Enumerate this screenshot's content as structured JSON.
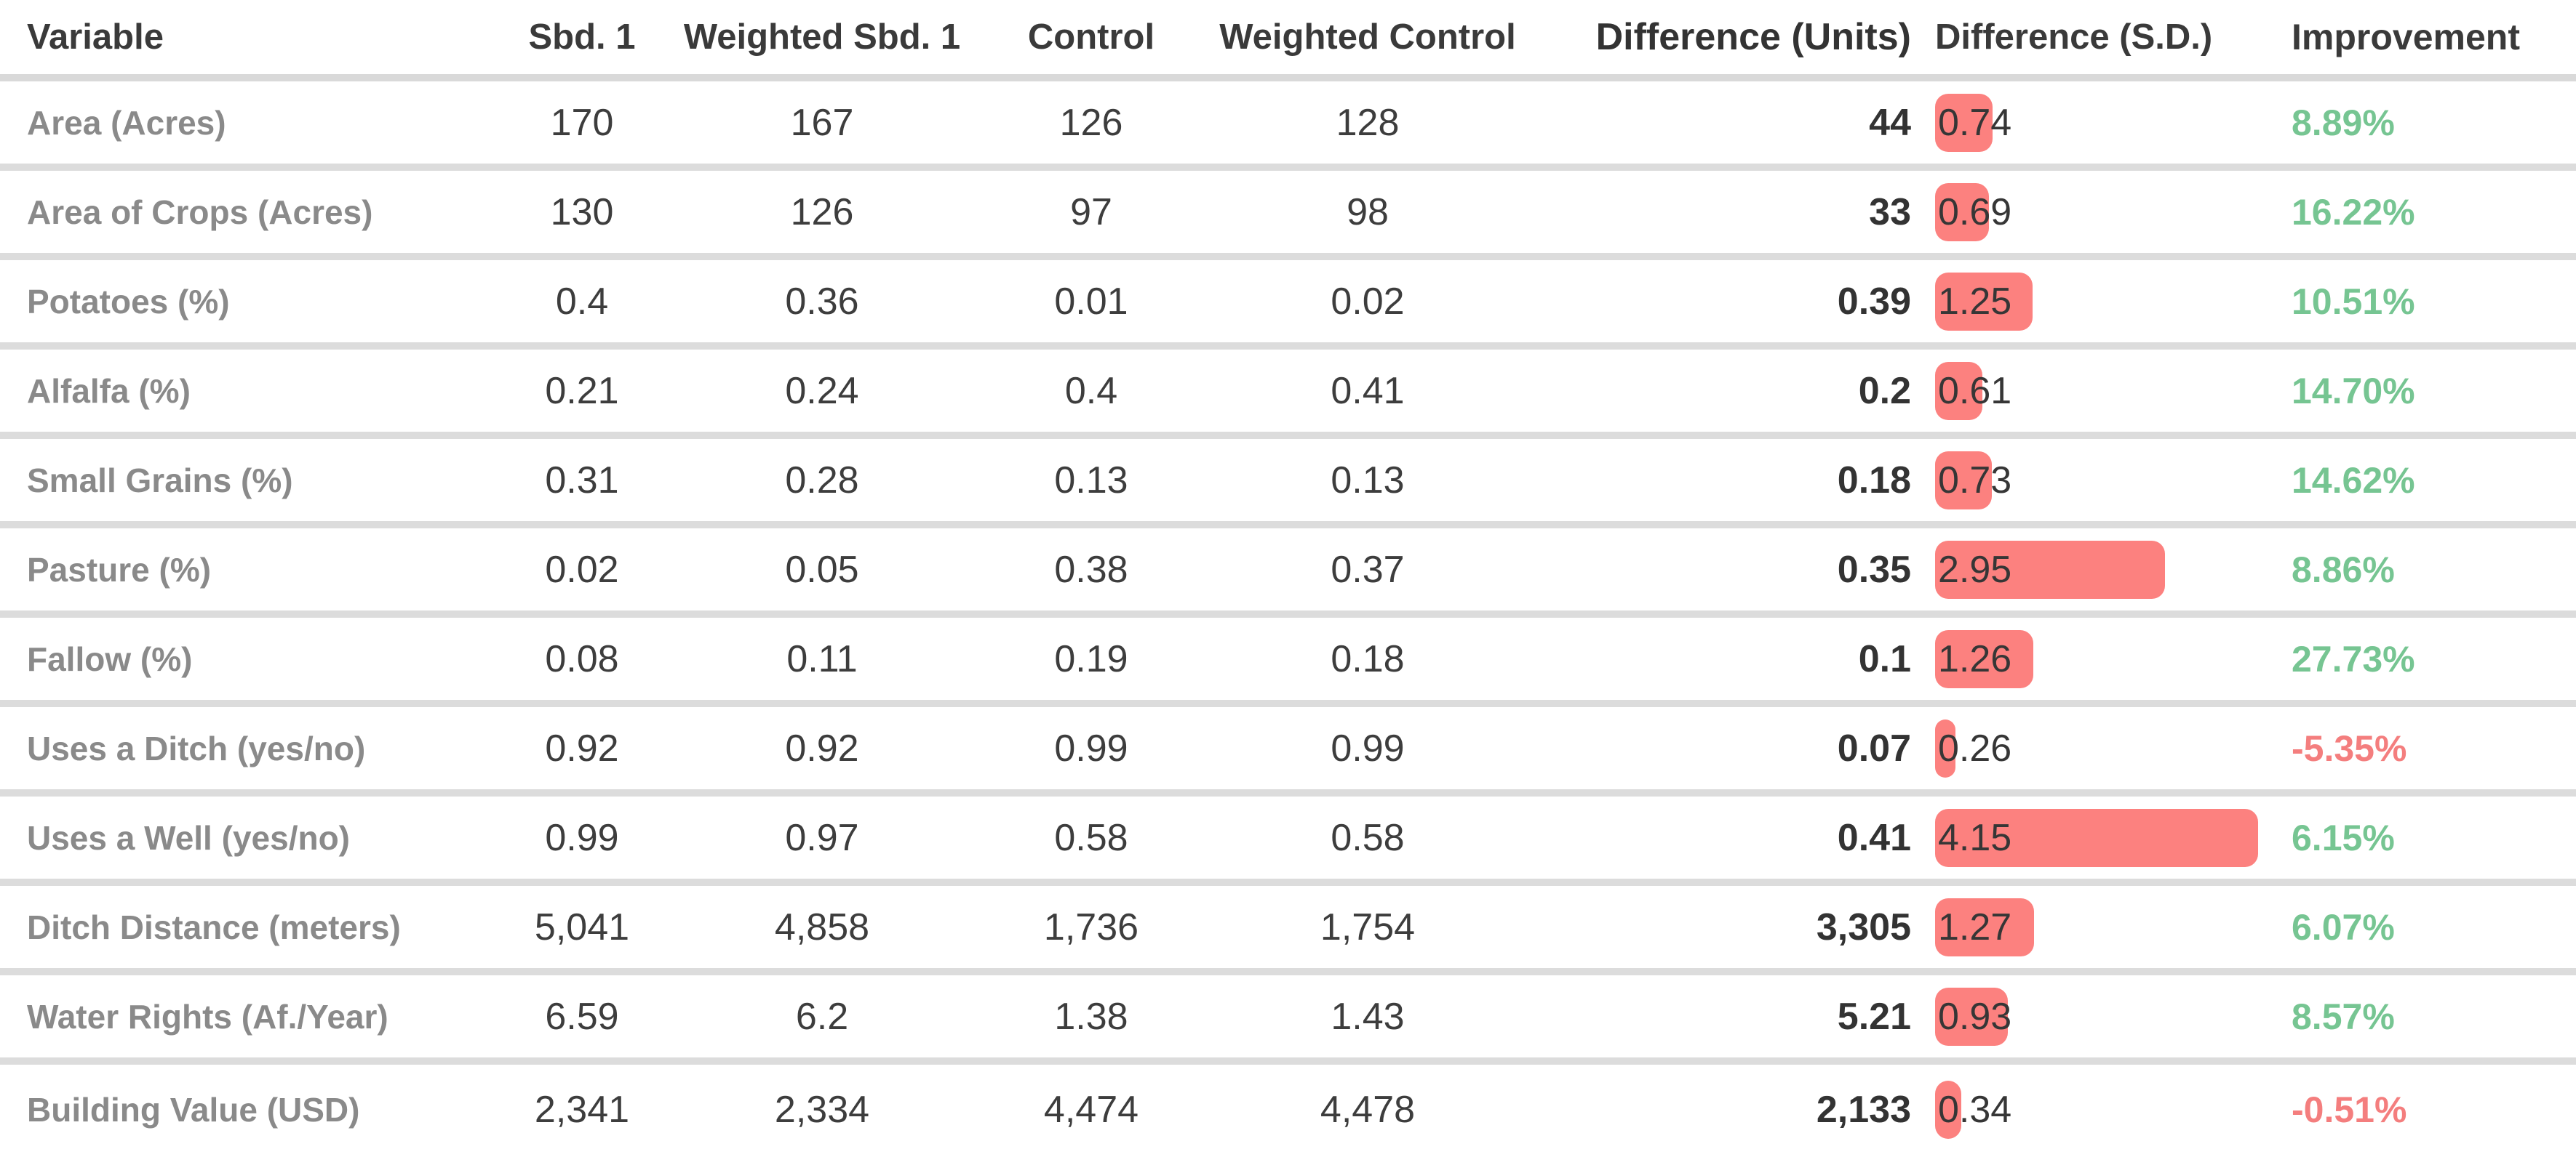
{
  "colors": {
    "sd_bar": "#fc817f",
    "improvement_positive": "#76c592",
    "improvement_negative": "#f47e7e",
    "header_text": "#3a3a3a",
    "variable_label": "#8a8a8a",
    "value_text": "#3d3d3d",
    "row_divider": "#dcdcdc"
  },
  "chart_data": {
    "type": "table",
    "title": "",
    "columns": [
      "Variable",
      "Sbd. 1",
      "Weighted Sbd. 1",
      "Control",
      "Weighted Control",
      "Difference (Units)",
      "Difference (S.D.)",
      "Improvement"
    ],
    "sd_bar": {
      "description": "red rounded bar behind Difference (S.D.) value, width proportional to value",
      "max_value": 4.15
    },
    "rows": [
      {
        "variable": "Area (Acres)",
        "sbd1": "170",
        "weighted_sbd1": "167",
        "control": "126",
        "weighted_control": "128",
        "difference_units": "44",
        "difference_sd": "0.74",
        "improvement": "8.89%"
      },
      {
        "variable": "Area of Crops (Acres)",
        "sbd1": "130",
        "weighted_sbd1": "126",
        "control": "97",
        "weighted_control": "98",
        "difference_units": "33",
        "difference_sd": "0.69",
        "improvement": "16.22%"
      },
      {
        "variable": "Potatoes (%)",
        "sbd1": "0.4",
        "weighted_sbd1": "0.36",
        "control": "0.01",
        "weighted_control": "0.02",
        "difference_units": "0.39",
        "difference_sd": "1.25",
        "improvement": "10.51%"
      },
      {
        "variable": "Alfalfa (%)",
        "sbd1": "0.21",
        "weighted_sbd1": "0.24",
        "control": "0.4",
        "weighted_control": "0.41",
        "difference_units": "0.2",
        "difference_sd": "0.61",
        "improvement": "14.70%"
      },
      {
        "variable": "Small Grains (%)",
        "sbd1": "0.31",
        "weighted_sbd1": "0.28",
        "control": "0.13",
        "weighted_control": "0.13",
        "difference_units": "0.18",
        "difference_sd": "0.73",
        "improvement": "14.62%"
      },
      {
        "variable": "Pasture (%)",
        "sbd1": "0.02",
        "weighted_sbd1": "0.05",
        "control": "0.38",
        "weighted_control": "0.37",
        "difference_units": "0.35",
        "difference_sd": "2.95",
        "improvement": "8.86%"
      },
      {
        "variable": "Fallow (%)",
        "sbd1": "0.08",
        "weighted_sbd1": "0.11",
        "control": "0.19",
        "weighted_control": "0.18",
        "difference_units": "0.1",
        "difference_sd": "1.26",
        "improvement": "27.73%"
      },
      {
        "variable": "Uses a Ditch (yes/no)",
        "sbd1": "0.92",
        "weighted_sbd1": "0.92",
        "control": "0.99",
        "weighted_control": "0.99",
        "difference_units": "0.07",
        "difference_sd": "0.26",
        "improvement": "-5.35%"
      },
      {
        "variable": "Uses a Well (yes/no)",
        "sbd1": "0.99",
        "weighted_sbd1": "0.97",
        "control": "0.58",
        "weighted_control": "0.58",
        "difference_units": "0.41",
        "difference_sd": "4.15",
        "improvement": "6.15%"
      },
      {
        "variable": "Ditch Distance (meters)",
        "sbd1": "5,041",
        "weighted_sbd1": "4,858",
        "control": "1,736",
        "weighted_control": "1,754",
        "difference_units": "3,305",
        "difference_sd": "1.27",
        "improvement": "6.07%"
      },
      {
        "variable": "Water Rights (Af./Year)",
        "sbd1": "6.59",
        "weighted_sbd1": "6.2",
        "control": "1.38",
        "weighted_control": "1.43",
        "difference_units": "5.21",
        "difference_sd": "0.93",
        "improvement": "8.57%"
      },
      {
        "variable": "Building Value (USD)",
        "sbd1": "2,341",
        "weighted_sbd1": "2,334",
        "control": "4,474",
        "weighted_control": "4,478",
        "difference_units": "2,133",
        "difference_sd": "0.34",
        "improvement": "-0.51%"
      }
    ]
  }
}
